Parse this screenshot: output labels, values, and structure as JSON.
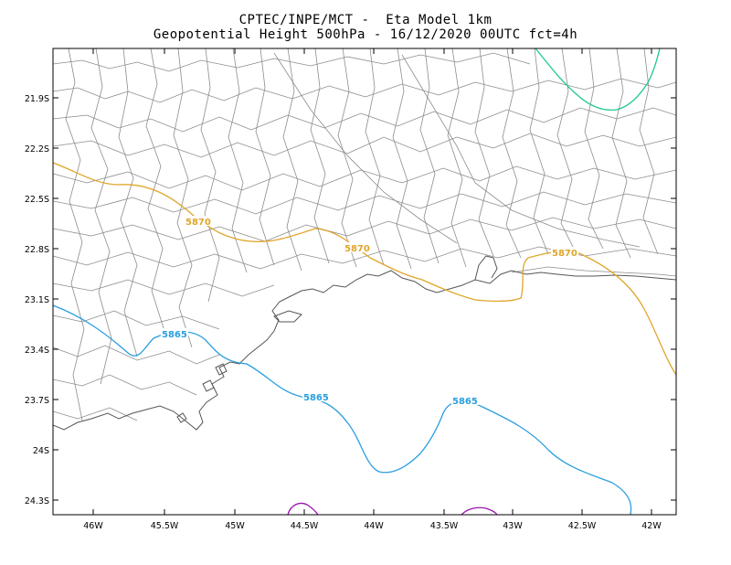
{
  "title": {
    "line1": "CPTEC/INPE/MCT -  Eta Model 1km",
    "line2": "Geopotential Height 500hPa - 16/12/2020 00UTC fct=4h"
  },
  "lat_labels": [
    "21.9S",
    "22.2S",
    "22.5S",
    "22.8S",
    "23.1S",
    "23.4S",
    "23.7S",
    "24S",
    "24.3S"
  ],
  "lon_labels": [
    "46W",
    "45.5W",
    "45W",
    "44.5W",
    "44W",
    "43.5W",
    "43W",
    "42.5W",
    "42W"
  ],
  "contours": {
    "c5870": {
      "value": "5870",
      "color": "#e0a62a"
    },
    "c5865": {
      "value": "5865",
      "color": "#2a9fe0"
    },
    "teal": {
      "color": "#20c88c"
    },
    "purple": {
      "color": "#9a10b0"
    }
  },
  "colors": {
    "border": "#8c8c8c",
    "coast": "#555555",
    "frame": "#000000"
  }
}
